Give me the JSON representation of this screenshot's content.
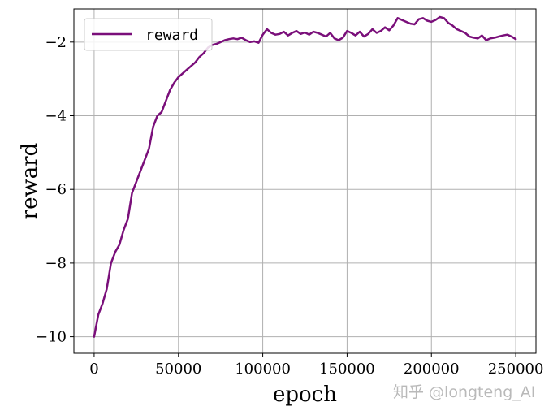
{
  "chart_data": {
    "type": "line",
    "title": "",
    "xlabel": "epoch",
    "ylabel": "reward",
    "xlim": [
      -12000,
      262000
    ],
    "ylim": [
      -10.45,
      -1.1
    ],
    "x_ticks": [
      0,
      50000,
      100000,
      150000,
      200000,
      250000
    ],
    "y_ticks": [
      -10,
      -8,
      -6,
      -4,
      -2
    ],
    "grid": true,
    "legend": {
      "position": "upper-left",
      "entries": [
        "reward"
      ]
    },
    "series": [
      {
        "name": "reward",
        "color": "#7a0f7a",
        "x": [
          0,
          2500,
          5000,
          7500,
          10000,
          12500,
          15000,
          17500,
          20000,
          22500,
          25000,
          27500,
          30000,
          32500,
          35000,
          37500,
          40000,
          42500,
          45000,
          47500,
          50000,
          52500,
          55000,
          57500,
          60000,
          62500,
          65000,
          67500,
          70000,
          72500,
          75000,
          77500,
          80000,
          82500,
          85000,
          87500,
          90000,
          92500,
          95000,
          97500,
          100000,
          102500,
          105000,
          107500,
          110000,
          112500,
          115000,
          117500,
          120000,
          122500,
          125000,
          127500,
          130000,
          132500,
          135000,
          137500,
          140000,
          142500,
          145000,
          147500,
          150000,
          152500,
          155000,
          157500,
          160000,
          162500,
          165000,
          167500,
          170000,
          172500,
          175000,
          177500,
          180000,
          182500,
          185000,
          187500,
          190000,
          192500,
          195000,
          197500,
          200000,
          202500,
          205000,
          207500,
          210000,
          212500,
          215000,
          217500,
          220000,
          222500,
          225000,
          227500,
          230000,
          232500,
          235000,
          237500,
          240000,
          242500,
          245000,
          247500,
          250000
        ],
        "values": [
          -10.0,
          -9.4,
          -9.1,
          -8.7,
          -8.0,
          -7.7,
          -7.5,
          -7.1,
          -6.8,
          -6.1,
          -5.8,
          -5.5,
          -5.2,
          -4.9,
          -4.3,
          -4.0,
          -3.9,
          -3.6,
          -3.3,
          -3.1,
          -2.95,
          -2.85,
          -2.75,
          -2.65,
          -2.55,
          -2.4,
          -2.3,
          -2.15,
          -2.08,
          -2.05,
          -2.0,
          -1.95,
          -1.92,
          -1.9,
          -1.92,
          -1.88,
          -1.95,
          -2.0,
          -1.98,
          -2.02,
          -1.8,
          -1.65,
          -1.75,
          -1.8,
          -1.78,
          -1.72,
          -1.82,
          -1.75,
          -1.7,
          -1.78,
          -1.74,
          -1.8,
          -1.72,
          -1.75,
          -1.8,
          -1.85,
          -1.75,
          -1.9,
          -1.95,
          -1.88,
          -1.7,
          -1.75,
          -1.82,
          -1.72,
          -1.85,
          -1.78,
          -1.65,
          -1.75,
          -1.7,
          -1.6,
          -1.68,
          -1.55,
          -1.35,
          -1.4,
          -1.45,
          -1.5,
          -1.52,
          -1.38,
          -1.35,
          -1.42,
          -1.45,
          -1.4,
          -1.32,
          -1.35,
          -1.48,
          -1.55,
          -1.65,
          -1.7,
          -1.75,
          -1.85,
          -1.88,
          -1.9,
          -1.82,
          -1.95,
          -1.9,
          -1.88,
          -1.85,
          -1.82,
          -1.8,
          -1.85,
          -1.92
        ]
      }
    ]
  },
  "watermark": "知乎 @longteng_AI"
}
